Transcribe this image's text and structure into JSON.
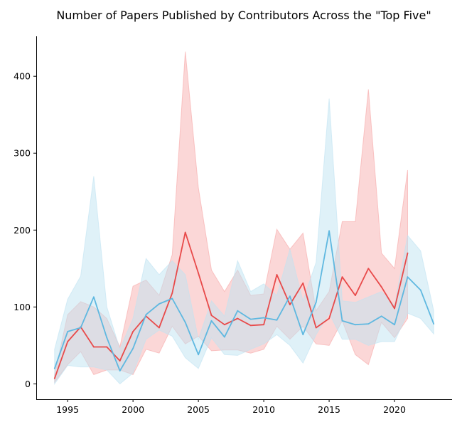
{
  "chart_data": {
    "type": "line",
    "title": "Number of Papers Published by Contributors Across the \"Top Five\"",
    "xlabel": "",
    "ylabel": "",
    "xlim": [
      1992.6,
      2024.4
    ],
    "ylim": [
      -20,
      452
    ],
    "xticks": [
      1995,
      2000,
      2005,
      2010,
      2015,
      2020
    ],
    "yticks": [
      0,
      100,
      200,
      300,
      400
    ],
    "grid": false,
    "legend": "none",
    "series": [
      {
        "color": "#e84a4a",
        "band_color": "#f7a6a6",
        "x": [
          1994,
          1995,
          1996,
          1997,
          1998,
          1999,
          2000,
          2001,
          2002,
          2003,
          2004,
          2005,
          2006,
          2007,
          2008,
          2009,
          2010,
          2011,
          2012,
          2013,
          2014,
          2015,
          2016,
          2017,
          2018,
          2019,
          2020,
          2021
        ],
        "values": [
          7,
          55,
          74,
          48,
          48,
          30,
          68,
          88,
          73,
          118,
          197,
          144,
          89,
          77,
          85,
          76,
          77,
          142,
          103,
          131,
          73,
          85,
          139,
          115,
          150,
          126,
          98,
          170
        ],
        "lower": [
          2,
          25,
          42,
          12,
          18,
          18,
          12,
          45,
          40,
          75,
          52,
          62,
          43,
          44,
          44,
          40,
          45,
          75,
          58,
          75,
          52,
          50,
          82,
          38,
          25,
          80,
          60,
          85
        ],
        "upper": [
          12,
          90,
          107,
          100,
          85,
          48,
          127,
          135,
          115,
          168,
          432,
          255,
          148,
          120,
          148,
          115,
          117,
          201,
          175,
          196,
          95,
          120,
          211,
          211,
          383,
          170,
          150,
          278
        ]
      },
      {
        "color": "#5fb8e0",
        "band_color": "#bfe3f1",
        "x": [
          1994,
          1995,
          1996,
          1997,
          1998,
          1999,
          2000,
          2001,
          2002,
          2003,
          2004,
          2005,
          2006,
          2007,
          2008,
          2009,
          2010,
          2011,
          2012,
          2013,
          2014,
          2015,
          2016,
          2017,
          2018,
          2019,
          2020,
          2021,
          2022,
          2023
        ],
        "values": [
          20,
          68,
          73,
          113,
          60,
          17,
          46,
          90,
          104,
          111,
          80,
          38,
          82,
          61,
          95,
          84,
          86,
          83,
          114,
          64,
          106,
          199,
          82,
          77,
          78,
          88,
          77,
          139,
          122,
          78
        ],
        "lower": [
          0,
          24,
          22,
          22,
          18,
          0,
          14,
          58,
          70,
          62,
          34,
          20,
          60,
          38,
          37,
          45,
          52,
          64,
          50,
          27,
          64,
          92,
          58,
          58,
          50,
          55,
          55,
          92,
          85,
          65
        ],
        "upper": [
          45,
          110,
          140,
          270,
          100,
          45,
          85,
          163,
          142,
          160,
          142,
          58,
          108,
          88,
          160,
          120,
          130,
          115,
          175,
          108,
          158,
          371,
          108,
          106,
          113,
          120,
          102,
          193,
          173,
          95
        ]
      }
    ]
  }
}
